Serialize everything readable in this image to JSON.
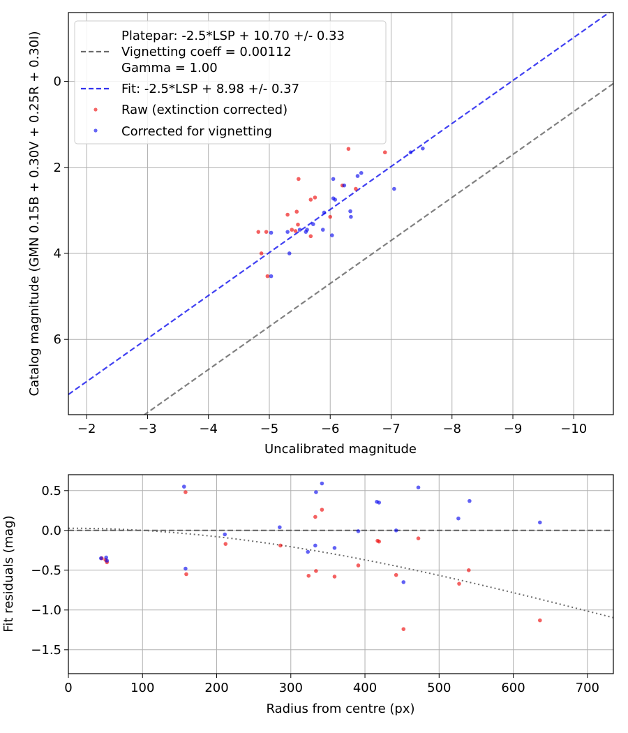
{
  "chart_data": [
    {
      "type": "scatter",
      "xlabel": "Uncalibrated magnitude",
      "ylabel": "Catalog magnitude (GMN 0.15B + 0.30V + 0.25R + 0.30I)",
      "xlim": [
        -1.7,
        -10.65
      ],
      "ylim": [
        -1.6,
        7.75
      ],
      "xticks": [
        -2,
        -3,
        -4,
        -5,
        -6,
        -7,
        -8,
        -9,
        -10
      ],
      "xtick_labels": [
        "−2",
        "−3",
        "−4",
        "−5",
        "−6",
        "−7",
        "−8",
        "−9",
        "−10"
      ],
      "yticks": [
        0,
        2,
        4,
        6
      ],
      "ytick_labels": [
        "0",
        "2",
        "4",
        "6"
      ],
      "grid": true,
      "legend_position": "top-left",
      "legend": [
        {
          "label": "Platepar: -2.5*LSP + 10.70 +/- 0.33",
          "style": "none"
        },
        {
          "label": "Vignetting coeff = 0.00112",
          "style": "gray-dashed"
        },
        {
          "label": "Gamma = 1.00",
          "style": "none"
        },
        {
          "label": "Fit: -2.5*LSP + 8.98 +/- 0.37",
          "style": "blue-dashed"
        },
        {
          "label": "Raw (extinction corrected)",
          "style": "red-dot"
        },
        {
          "label": "Corrected for vignetting",
          "style": "blue-dot"
        }
      ],
      "lines": [
        {
          "name": "Platepar",
          "offset": 10.7,
          "color": "#555555"
        },
        {
          "name": "Fit",
          "offset": 8.98,
          "color": "#0000ee"
        }
      ],
      "series": [
        {
          "name": "Raw (extinction corrected)",
          "color": "#ee0000",
          "points": [
            [
              -6.3,
              1.57
            ],
            [
              -6.9,
              1.65
            ],
            [
              -6.2,
              2.42
            ],
            [
              -6.42,
              2.5
            ],
            [
              -5.48,
              2.27
            ],
            [
              -5.75,
              2.7
            ],
            [
              -5.68,
              2.75
            ],
            [
              -5.45,
              3.03
            ],
            [
              -5.3,
              3.1
            ],
            [
              -6.0,
              3.15
            ],
            [
              -5.47,
              3.33
            ],
            [
              -5.37,
              3.45
            ],
            [
              -5.43,
              3.48
            ],
            [
              -4.82,
              3.5
            ],
            [
              -4.95,
              3.5
            ],
            [
              -5.68,
              3.6
            ],
            [
              -4.87,
              4.0
            ],
            [
              -4.97,
              4.53
            ]
          ]
        },
        {
          "name": "Corrected for vignetting",
          "color": "#0000ee",
          "points": [
            [
              -7.52,
              1.56
            ],
            [
              -7.32,
              1.65
            ],
            [
              -6.51,
              2.13
            ],
            [
              -6.45,
              2.2
            ],
            [
              -6.05,
              2.27
            ],
            [
              -6.23,
              2.42
            ],
            [
              -7.05,
              2.5
            ],
            [
              -6.05,
              2.72
            ],
            [
              -6.08,
              2.75
            ],
            [
              -6.33,
              3.02
            ],
            [
              -5.9,
              3.05
            ],
            [
              -6.34,
              3.15
            ],
            [
              -5.72,
              3.32
            ],
            [
              -5.62,
              3.45
            ],
            [
              -5.88,
              3.45
            ],
            [
              -5.3,
              3.5
            ],
            [
              -5.03,
              3.52
            ],
            [
              -5.5,
              3.45
            ],
            [
              -5.6,
              3.5
            ],
            [
              -6.03,
              3.58
            ],
            [
              -5.33,
              4.0
            ],
            [
              -5.03,
              4.53
            ]
          ]
        }
      ]
    },
    {
      "type": "scatter",
      "xlabel": "Radius from centre (px)",
      "ylabel": "Fit residuals (mag)",
      "xlim": [
        0,
        735
      ],
      "ylim": [
        -1.8,
        0.7
      ],
      "xticks": [
        0,
        100,
        200,
        300,
        400,
        500,
        600,
        700
      ],
      "xtick_labels": [
        "0",
        "100",
        "200",
        "300",
        "400",
        "500",
        "600",
        "700"
      ],
      "yticks": [
        0.5,
        0.0,
        -0.5,
        -1.0,
        -1.5
      ],
      "ytick_labels": [
        "0.5",
        "0.0",
        "−0.5",
        "−1.0",
        "−1.5"
      ],
      "grid": true,
      "vignetting_coeff": 0.00112,
      "reference_line": 0.0,
      "series": [
        {
          "name": "Raw (extinction corrected)",
          "color": "#ee0000",
          "points": [
            [
              45,
              -0.35
            ],
            [
              50,
              -0.37
            ],
            [
              52,
              -0.4
            ],
            [
              158,
              0.48
            ],
            [
              159,
              -0.55
            ],
            [
              212,
              -0.17
            ],
            [
              286,
              -0.19
            ],
            [
              324,
              -0.57
            ],
            [
              333,
              0.17
            ],
            [
              334,
              -0.51
            ],
            [
              342,
              0.26
            ],
            [
              359,
              -0.58
            ],
            [
              391,
              -0.44
            ],
            [
              417,
              -0.13
            ],
            [
              419,
              -0.14
            ],
            [
              442,
              -0.56
            ],
            [
              452,
              -1.24
            ],
            [
              472,
              -0.1
            ],
            [
              527,
              -0.67
            ],
            [
              540,
              -0.5
            ],
            [
              636,
              -1.13
            ]
          ]
        },
        {
          "name": "Corrected for vignetting",
          "color": "#0000ee",
          "points": [
            [
              44,
              -0.35
            ],
            [
              51,
              -0.34
            ],
            [
              52,
              -0.38
            ],
            [
              156,
              0.55
            ],
            [
              158,
              -0.48
            ],
            [
              211,
              -0.05
            ],
            [
              285,
              0.04
            ],
            [
              323,
              -0.27
            ],
            [
              333,
              -0.19
            ],
            [
              334,
              0.48
            ],
            [
              342,
              0.59
            ],
            [
              359,
              -0.22
            ],
            [
              391,
              -0.01
            ],
            [
              416,
              0.36
            ],
            [
              419,
              0.35
            ],
            [
              442,
              0.0
            ],
            [
              452,
              -0.65
            ],
            [
              472,
              0.54
            ],
            [
              526,
              0.15
            ],
            [
              541,
              0.37
            ],
            [
              636,
              0.1
            ]
          ]
        }
      ]
    }
  ]
}
